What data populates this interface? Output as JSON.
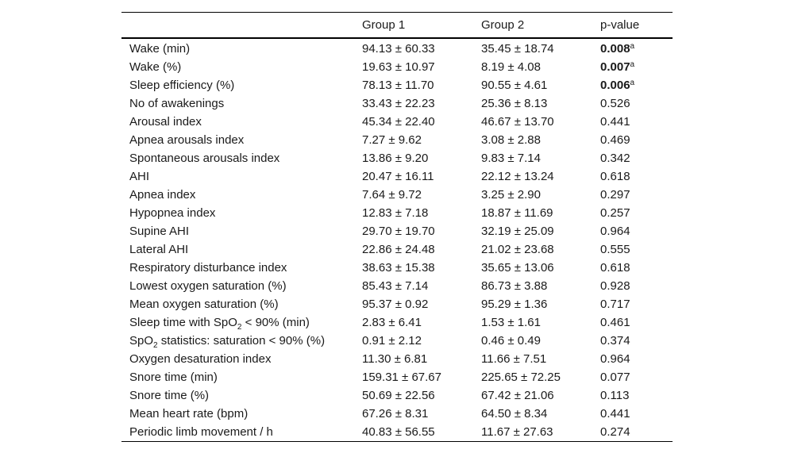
{
  "headers": [
    "",
    "Group 1",
    "Group 2",
    "p-value"
  ],
  "rows": [
    {
      "label": "Wake (min)",
      "g1": "94.13 ± 60.33",
      "g2": "35.45 ± 18.74",
      "p": "0.008",
      "sig": "a"
    },
    {
      "label": "Wake (%)",
      "g1": "19.63 ± 10.97",
      "g2": "8.19 ± 4.08",
      "p": "0.007",
      "sig": "a"
    },
    {
      "label": "Sleep efficiency (%)",
      "g1": "78.13 ± 11.70",
      "g2": "90.55 ± 4.61",
      "p": "0.006",
      "sig": "a"
    },
    {
      "label": "No of awakenings",
      "g1": "33.43 ± 22.23",
      "g2": "25.36 ± 8.13",
      "p": "0.526"
    },
    {
      "label": "Arousal index",
      "g1": "45.34 ± 22.40",
      "g2": "46.67 ± 13.70",
      "p": "0.441"
    },
    {
      "label": "Apnea arousals index",
      "g1": "7.27 ± 9.62",
      "g2": "3.08 ± 2.88",
      "p": "0.469"
    },
    {
      "label": "Spontaneous arousals index",
      "g1": "13.86 ± 9.20",
      "g2": "9.83 ± 7.14",
      "p": "0.342"
    },
    {
      "label": "AHI",
      "g1": "20.47 ± 16.11",
      "g2": "22.12 ± 13.24",
      "p": "0.618"
    },
    {
      "label": "Apnea index",
      "g1": "7.64 ± 9.72",
      "g2": "3.25 ± 2.90",
      "p": "0.297"
    },
    {
      "label": "Hypopnea index",
      "g1": "12.83 ± 7.18",
      "g2": "18.87 ± 11.69",
      "p": "0.257"
    },
    {
      "label": "Supine AHI",
      "g1": "29.70 ± 19.70",
      "g2": "32.19 ± 25.09",
      "p": "0.964"
    },
    {
      "label": "Lateral AHI",
      "g1": "22.86 ± 24.48",
      "g2": "21.02 ± 23.68",
      "p": "0.555"
    },
    {
      "label": "Respiratory disturbance index",
      "g1": "38.63 ± 15.38",
      "g2": "35.65 ± 13.06",
      "p": "0.618"
    },
    {
      "label": "Lowest oxygen saturation (%)",
      "g1": "85.43 ± 7.14",
      "g2": "86.73 ± 3.88",
      "p": "0.928"
    },
    {
      "label": "Mean oxygen saturation (%)",
      "g1": "95.37 ± 0.92",
      "g2": "95.29 ± 1.36",
      "p": "0.717"
    },
    {
      "label_pre": "Sleep time with SpO",
      "label_sub": "2",
      "label_post": " < 90% (min)",
      "g1": "2.83 ± 6.41",
      "g2": "1.53 ± 1.61",
      "p": "0.461"
    },
    {
      "label_pre": "SpO",
      "label_sub": "2",
      "label_post": " statistics: saturation < 90% (%)",
      "g1": "0.91 ± 2.12",
      "g2": "0.46 ± 0.49",
      "p": "0.374"
    },
    {
      "label": "Oxygen desaturation index",
      "g1": "11.30 ± 6.81",
      "g2": "11.66 ± 7.51",
      "p": "0.964"
    },
    {
      "label": "Snore time (min)",
      "g1": "159.31 ± 67.67",
      "g2": "225.65 ± 72.25",
      "p": "0.077"
    },
    {
      "label": "Snore time (%)",
      "g1": "50.69 ± 22.56",
      "g2": "67.42 ± 21.06",
      "p": "0.113"
    },
    {
      "label": "Mean heart rate (bpm)",
      "g1": "67.26 ± 8.31",
      "g2": "64.50 ± 8.34",
      "p": "0.441"
    },
    {
      "label": "Periodic limb movement / h",
      "g1": "40.83 ± 56.55",
      "g2": "11.67 ± 27.63",
      "p": "0.274"
    }
  ]
}
